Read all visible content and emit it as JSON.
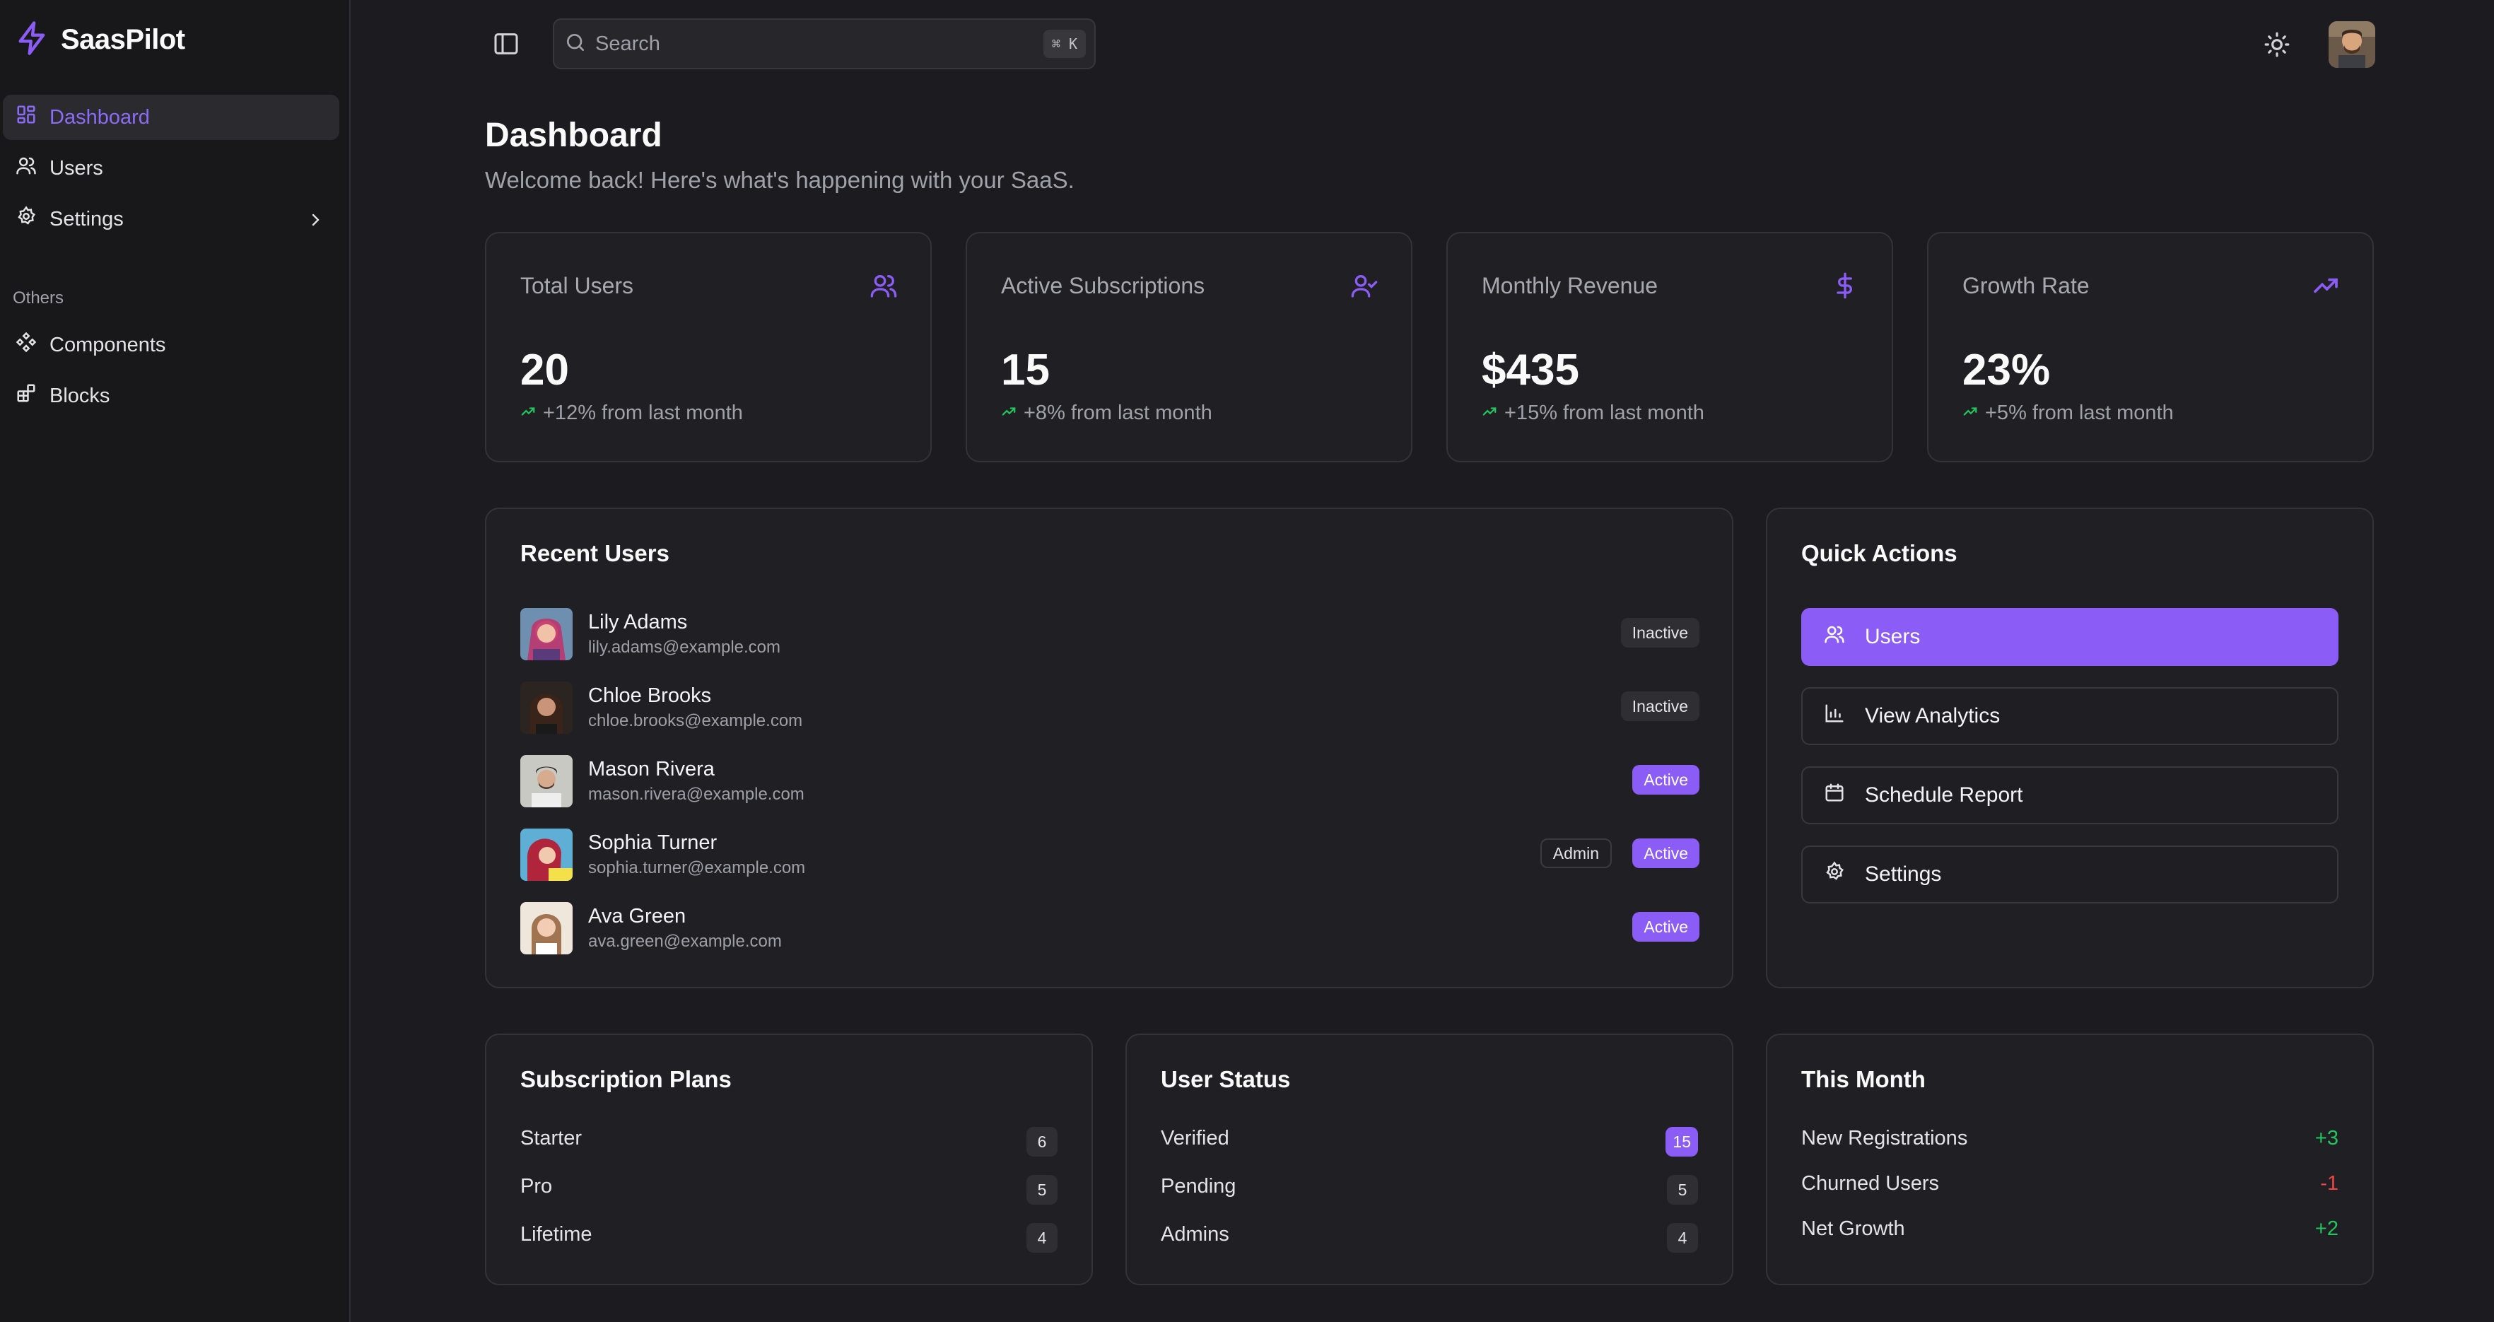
{
  "brand": {
    "name": "SaasPilot",
    "icon": "lightning-icon"
  },
  "sidebar": {
    "items": [
      {
        "label": "Dashboard",
        "icon": "grid-icon",
        "active": true
      },
      {
        "label": "Users",
        "icon": "users-icon"
      },
      {
        "label": "Settings",
        "icon": "gear-icon"
      }
    ],
    "section_label": "Others",
    "other_items": [
      {
        "label": "Components",
        "icon": "components-icon"
      },
      {
        "label": "Blocks",
        "icon": "blocks-icon"
      }
    ]
  },
  "topbar": {
    "search_placeholder": "Search",
    "search_shortcut": "⌘ K",
    "theme_toggle_icon": "sun-icon"
  },
  "page": {
    "title": "Dashboard",
    "subtitle": "Welcome back! Here's what's happening with your SaaS."
  },
  "stats": [
    {
      "title": "Total Users",
      "value": "20",
      "delta": "+12% from last month",
      "icon": "users-icon"
    },
    {
      "title": "Active Subscriptions",
      "value": "15",
      "delta": "+8% from last month",
      "icon": "user-check-icon"
    },
    {
      "title": "Monthly Revenue",
      "value": "$435",
      "delta": "+15% from last month",
      "icon": "dollar-icon"
    },
    {
      "title": "Growth Rate",
      "value": "23%",
      "delta": "+5% from last month",
      "icon": "trending-up-icon"
    }
  ],
  "recent_users": {
    "title": "Recent Users",
    "users": [
      {
        "name": "Lily Adams",
        "email": "lily.adams@example.com",
        "status": "Inactive"
      },
      {
        "name": "Chloe Brooks",
        "email": "chloe.brooks@example.com",
        "status": "Inactive"
      },
      {
        "name": "Mason Rivera",
        "email": "mason.rivera@example.com",
        "status": "Active"
      },
      {
        "name": "Sophia Turner",
        "email": "sophia.turner@example.com",
        "status": "Active",
        "role": "Admin"
      },
      {
        "name": "Ava Green",
        "email": "ava.green@example.com",
        "status": "Active"
      }
    ]
  },
  "quick_actions": {
    "title": "Quick Actions",
    "actions": [
      {
        "label": "Users",
        "icon": "users-icon"
      },
      {
        "label": "View Analytics",
        "icon": "bar-chart-icon"
      },
      {
        "label": "Schedule Report",
        "icon": "calendar-icon"
      },
      {
        "label": "Settings",
        "icon": "gear-icon"
      }
    ]
  },
  "subscription_plans": {
    "title": "Subscription Plans",
    "rows": [
      {
        "label": "Starter",
        "count": "6"
      },
      {
        "label": "Pro",
        "count": "5"
      },
      {
        "label": "Lifetime",
        "count": "4"
      }
    ]
  },
  "user_status": {
    "title": "User Status",
    "rows": [
      {
        "label": "Verified",
        "count": "15"
      },
      {
        "label": "Pending",
        "count": "5"
      },
      {
        "label": "Admins",
        "count": "4"
      }
    ]
  },
  "this_month": {
    "title": "This Month",
    "rows": [
      {
        "label": "New Registrations",
        "value": "+3"
      },
      {
        "label": "Churned Users",
        "value": "-1"
      },
      {
        "label": "Net Growth",
        "value": "+2"
      }
    ]
  },
  "colors": {
    "accent": "#8b5cf6",
    "positive": "#22c55e",
    "negative": "#ef4444"
  }
}
